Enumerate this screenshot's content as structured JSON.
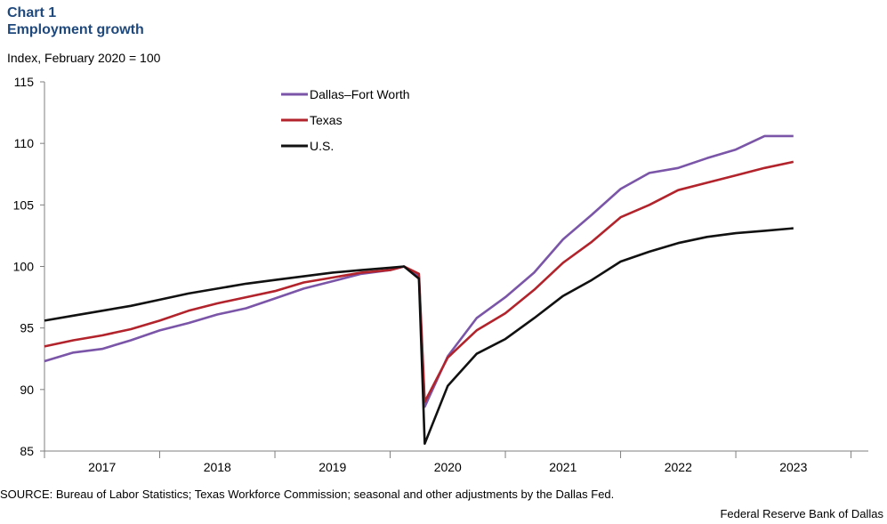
{
  "header": {
    "chart_number": "Chart 1",
    "title": "Employment growth",
    "subtitle": "Index, February 2020 = 100"
  },
  "footer": {
    "source": "SOURCE: Bureau of Labor Statistics; Texas Workforce Commission; seasonal and other adjustments by the Dallas Fed.",
    "credit": "Federal Reserve Bank of Dallas"
  },
  "chart_data": {
    "type": "line",
    "title": "Employment growth",
    "ylabel": "Index, February 2020 = 100",
    "ylim": [
      85,
      115
    ],
    "yticks": [
      85,
      90,
      95,
      100,
      105,
      110,
      115
    ],
    "xlim": [
      2017.0,
      2024.0
    ],
    "year_labels": [
      "2017",
      "2018",
      "2019",
      "2020",
      "2021",
      "2022",
      "2023"
    ],
    "grid": false,
    "legend_placement": "top-left",
    "colors": {
      "dfw": "#7a55a8",
      "texas": "#b2232b",
      "us": "#111111",
      "axis": "#7f7f7f"
    },
    "series": [
      {
        "name": "Dallas–Fort Worth",
        "key": "dfw",
        "points": [
          [
            2017.0,
            92.3
          ],
          [
            2017.25,
            93.0
          ],
          [
            2017.5,
            93.3
          ],
          [
            2017.75,
            94.0
          ],
          [
            2018.0,
            94.8
          ],
          [
            2018.25,
            95.4
          ],
          [
            2018.5,
            96.1
          ],
          [
            2018.75,
            96.6
          ],
          [
            2019.0,
            97.4
          ],
          [
            2019.25,
            98.2
          ],
          [
            2019.5,
            98.8
          ],
          [
            2019.75,
            99.4
          ],
          [
            2020.0,
            99.7
          ],
          [
            2020.12,
            100.0
          ],
          [
            2020.25,
            99.2
          ],
          [
            2020.3,
            88.6
          ],
          [
            2020.5,
            92.7
          ],
          [
            2020.75,
            95.8
          ],
          [
            2021.0,
            97.5
          ],
          [
            2021.25,
            99.5
          ],
          [
            2021.5,
            102.2
          ],
          [
            2021.75,
            104.2
          ],
          [
            2022.0,
            106.3
          ],
          [
            2022.25,
            107.6
          ],
          [
            2022.5,
            108.0
          ],
          [
            2022.75,
            108.8
          ],
          [
            2023.0,
            109.5
          ],
          [
            2023.25,
            110.6
          ],
          [
            2023.5,
            110.6
          ]
        ]
      },
      {
        "name": "Texas",
        "key": "texas",
        "points": [
          [
            2017.0,
            93.5
          ],
          [
            2017.25,
            94.0
          ],
          [
            2017.5,
            94.4
          ],
          [
            2017.75,
            94.9
          ],
          [
            2018.0,
            95.6
          ],
          [
            2018.25,
            96.4
          ],
          [
            2018.5,
            97.0
          ],
          [
            2018.75,
            97.5
          ],
          [
            2019.0,
            98.0
          ],
          [
            2019.25,
            98.7
          ],
          [
            2019.5,
            99.1
          ],
          [
            2019.75,
            99.5
          ],
          [
            2020.0,
            99.7
          ],
          [
            2020.12,
            100.0
          ],
          [
            2020.25,
            99.4
          ],
          [
            2020.3,
            89.0
          ],
          [
            2020.5,
            92.6
          ],
          [
            2020.75,
            94.8
          ],
          [
            2021.0,
            96.2
          ],
          [
            2021.25,
            98.1
          ],
          [
            2021.5,
            100.3
          ],
          [
            2021.75,
            102.0
          ],
          [
            2022.0,
            104.0
          ],
          [
            2022.25,
            105.0
          ],
          [
            2022.5,
            106.2
          ],
          [
            2022.75,
            106.8
          ],
          [
            2023.0,
            107.4
          ],
          [
            2023.25,
            108.0
          ],
          [
            2023.5,
            108.5
          ]
        ]
      },
      {
        "name": "U.S.",
        "key": "us",
        "points": [
          [
            2017.0,
            95.6
          ],
          [
            2017.25,
            96.0
          ],
          [
            2017.5,
            96.4
          ],
          [
            2017.75,
            96.8
          ],
          [
            2018.0,
            97.3
          ],
          [
            2018.25,
            97.8
          ],
          [
            2018.5,
            98.2
          ],
          [
            2018.75,
            98.6
          ],
          [
            2019.0,
            98.9
          ],
          [
            2019.25,
            99.2
          ],
          [
            2019.5,
            99.5
          ],
          [
            2019.75,
            99.7
          ],
          [
            2020.0,
            99.9
          ],
          [
            2020.12,
            100.0
          ],
          [
            2020.25,
            99.0
          ],
          [
            2020.3,
            85.6
          ],
          [
            2020.5,
            90.3
          ],
          [
            2020.75,
            92.9
          ],
          [
            2021.0,
            94.1
          ],
          [
            2021.25,
            95.8
          ],
          [
            2021.5,
            97.6
          ],
          [
            2021.75,
            98.9
          ],
          [
            2022.0,
            100.4
          ],
          [
            2022.25,
            101.2
          ],
          [
            2022.5,
            101.9
          ],
          [
            2022.75,
            102.4
          ],
          [
            2023.0,
            102.7
          ],
          [
            2023.25,
            102.9
          ],
          [
            2023.5,
            103.1
          ]
        ]
      }
    ]
  }
}
